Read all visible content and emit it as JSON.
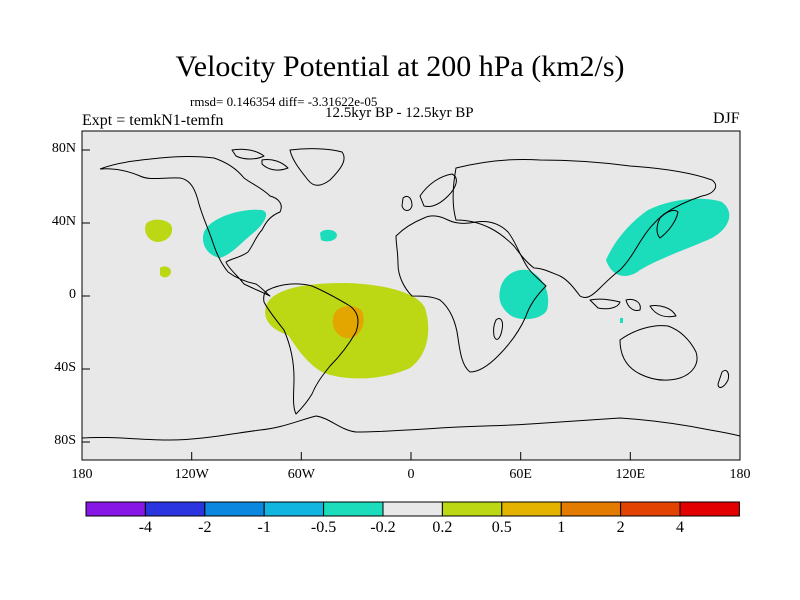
{
  "title": "Velocity Potential at 200 hPa (km2/s)",
  "stats": "rmsd= 0.146354 diff= -3.31622e-05",
  "left_label": "Expt = temkN1-temfn",
  "center_subtitle": "12.5kyr BP - 12.5kyr BP",
  "right_label": "DJF",
  "map": {
    "background_color": "#e8e8e8",
    "lon_ticks": [
      "180",
      "120W",
      "60W",
      "0",
      "60E",
      "120E",
      "180"
    ],
    "lat_ticks": [
      "80N",
      "40N",
      "0",
      "40S",
      "80S"
    ],
    "regions": [
      {
        "name": "east-pacific-positive-blob",
        "level": "0.2 to 0.5",
        "color": "#bcd814"
      },
      {
        "name": "north-america-negative-blob",
        "level": "-0.5 to -0.2",
        "color": "#1bdcbb"
      },
      {
        "name": "south-america-atlantic-positive",
        "level": "0.2 to 0.5",
        "color": "#bcd814"
      },
      {
        "name": "brazil-core-positive",
        "level": "0.5 to 1",
        "color": "#e3a500"
      },
      {
        "name": "east-africa-negative",
        "level": "-0.5 to -0.2",
        "color": "#1bdcbb"
      },
      {
        "name": "east-asia-negative",
        "level": "-0.5 to -0.2",
        "color": "#1bdcbb"
      }
    ]
  },
  "colorbar": {
    "colors": [
      "#8717e4",
      "#2a35e0",
      "#0c87e0",
      "#12b5e0",
      "#1bdcbb",
      "#e8e8e8",
      "#bcd814",
      "#e3b300",
      "#e37b00",
      "#e34300",
      "#e30000"
    ],
    "labels": [
      "-4",
      "-2",
      "-1",
      "-0.5",
      "-0.2",
      "0.2",
      "0.5",
      "1",
      "2",
      "4"
    ]
  }
}
